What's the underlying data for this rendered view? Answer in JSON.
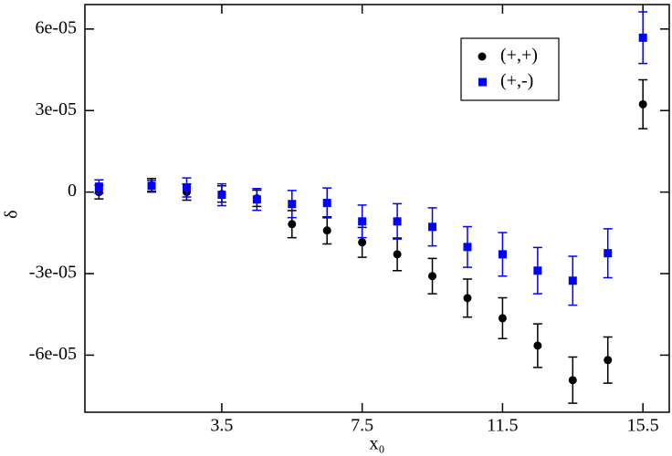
{
  "chart_data": {
    "type": "scatter",
    "x_label": "x₀",
    "y_label": "δ",
    "x": [
      0,
      1.5,
      2.5,
      3.5,
      4.5,
      5.5,
      6.5,
      7.5,
      8.5,
      9.5,
      10.5,
      11.5,
      12.5,
      13.5,
      14.5,
      15.5
    ],
    "series": [
      {
        "name": "(+,+)",
        "color": "#000000",
        "marker": "circle",
        "values": [
          0,
          2.5e-06,
          0,
          -7e-07,
          -2.3e-06,
          -1.18e-05,
          -1.41e-05,
          -1.85e-05,
          -2.29e-05,
          -3.09e-05,
          -3.9e-05,
          -4.64e-05,
          -5.65e-05,
          -6.92e-05,
          -6.18e-05,
          3.23e-05
        ],
        "errors": [
          2.5e-06,
          2.5e-06,
          3e-06,
          3e-06,
          3e-06,
          5e-06,
          5e-06,
          5.5e-06,
          6e-06,
          6.5e-06,
          7e-06,
          7.5e-06,
          8e-06,
          8.5e-06,
          8.5e-06,
          9e-06
        ]
      },
      {
        "name": "(+,-)",
        "color": "#0000ff",
        "marker": "square",
        "values": [
          2e-06,
          2.3e-06,
          1.7e-06,
          -1e-06,
          -2.7e-06,
          -4.4e-06,
          -4e-06,
          -1.08e-05,
          -1.08e-05,
          -1.28e-05,
          -2.02e-05,
          -2.29e-05,
          -2.89e-05,
          -3.26e-05,
          -2.25e-05,
          5.68e-05
        ],
        "errors": [
          2.5e-06,
          2e-06,
          3.5e-06,
          4e-06,
          4e-06,
          5e-06,
          5.5e-06,
          6e-06,
          6.5e-06,
          7e-06,
          7.5e-06,
          8e-06,
          8.5e-06,
          9e-06,
          9e-06,
          9.5e-06
        ]
      }
    ],
    "xlim": [
      -0.4,
      16.25
    ],
    "xticks": [
      3.5,
      7.5,
      11.5,
      15.5
    ],
    "ylim": [
      -8.1e-05,
      6.9e-05
    ],
    "yticks": [
      {
        "value": -6e-05,
        "label": "-6e-05"
      },
      {
        "value": -3e-05,
        "label": "-3e-05"
      },
      0,
      {
        "value": 3e-05,
        "label": "3e-05"
      },
      {
        "value": 6e-05,
        "label": "6e-05"
      }
    ],
    "grid": false,
    "legend": "upper right"
  }
}
